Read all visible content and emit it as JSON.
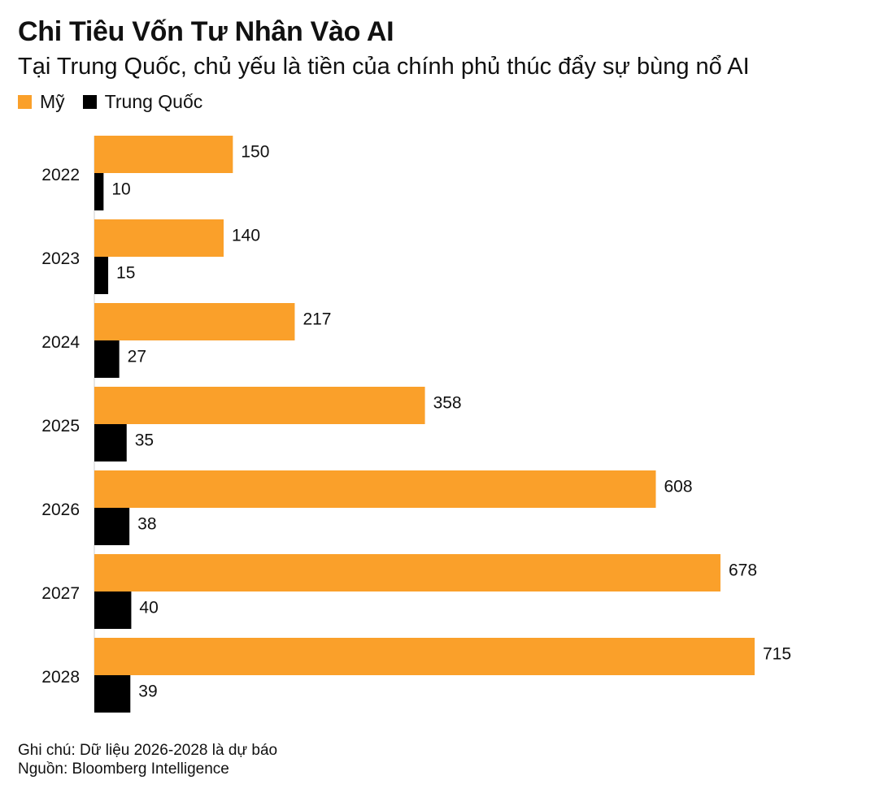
{
  "chart_data": {
    "type": "bar",
    "orientation": "horizontal",
    "title": "Chi Tiêu Vốn Tư Nhân Vào AI",
    "subtitle": "Tại Trung Quốc, chủ yếu là tiền của chính phủ thúc đẩy sự bùng nổ AI",
    "categories": [
      "2022",
      "2023",
      "2024",
      "2025",
      "2026",
      "2027",
      "2028"
    ],
    "series": [
      {
        "name": "Mỹ",
        "color": "#FAA02A",
        "values": [
          150,
          140,
          217,
          358,
          608,
          678,
          715
        ]
      },
      {
        "name": "Trung Quốc",
        "color": "#000000",
        "values": [
          10,
          15,
          27,
          35,
          38,
          40,
          39
        ]
      }
    ],
    "xlim": [
      0,
      750
    ],
    "grid": false,
    "data_labels": true,
    "legend_position": "top-left"
  },
  "footer": {
    "note": "Ghi chú: Dữ liệu 2026-2028 là dự báo",
    "source": "Nguồn: Bloomberg Intelligence"
  }
}
